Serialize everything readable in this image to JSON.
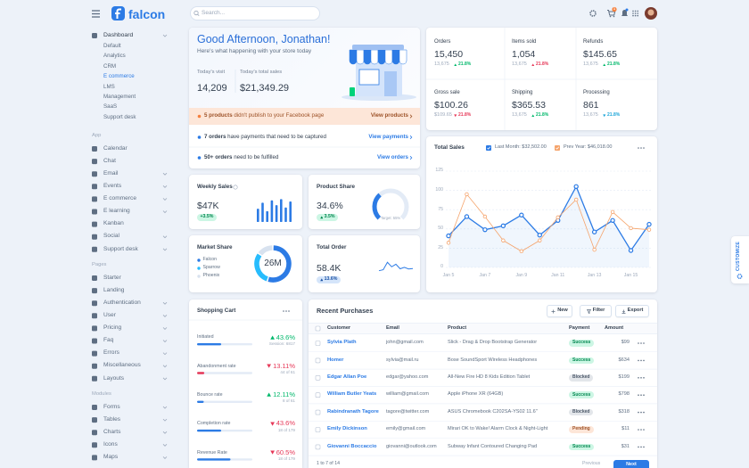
{
  "topbar": {
    "logo": "falcon",
    "search": "Search...",
    "cart_badge": "1"
  },
  "sidebar": {
    "dashboard": {
      "label": "Dashboard",
      "items": [
        "Default",
        "Analytics",
        "CRM",
        "E commerce",
        "LMS",
        "Management",
        "SaaS",
        "Support desk"
      ],
      "active_index": 3
    },
    "groups": [
      {
        "label": "App",
        "items": [
          {
            "label": "Calendar",
            "expandable": false
          },
          {
            "label": "Chat",
            "expandable": false
          },
          {
            "label": "Email",
            "expandable": true
          },
          {
            "label": "Events",
            "expandable": true
          },
          {
            "label": "E commerce",
            "expandable": true
          },
          {
            "label": "E learning",
            "expandable": true
          },
          {
            "label": "Kanban",
            "expandable": false
          },
          {
            "label": "Social",
            "expandable": true
          },
          {
            "label": "Support desk",
            "expandable": true
          }
        ]
      },
      {
        "label": "Pages",
        "items": [
          {
            "label": "Starter",
            "expandable": false
          },
          {
            "label": "Landing",
            "expandable": false
          },
          {
            "label": "Authentication",
            "expandable": true
          },
          {
            "label": "User",
            "expandable": true
          },
          {
            "label": "Pricing",
            "expandable": true
          },
          {
            "label": "Faq",
            "expandable": true
          },
          {
            "label": "Errors",
            "expandable": true
          },
          {
            "label": "Miscellaneous",
            "expandable": true
          },
          {
            "label": "Layouts",
            "expandable": true
          }
        ]
      },
      {
        "label": "Modules",
        "items": [
          {
            "label": "Forms",
            "expandable": true
          },
          {
            "label": "Tables",
            "expandable": true
          },
          {
            "label": "Charts",
            "expandable": true
          },
          {
            "label": "Icons",
            "expandable": true
          },
          {
            "label": "Maps",
            "expandable": true
          }
        ]
      }
    ]
  },
  "greeting": {
    "title": "Good Afternoon, Jonathan!",
    "subtitle": "Here's what happening with your store today",
    "stats": [
      {
        "label": "Today's visit",
        "value": "14,209"
      },
      {
        "label": "Today's total sales",
        "value": "$21,349.29"
      }
    ],
    "notices": [
      {
        "strong": "5 products",
        "text": " didn't publish to your Facebook page",
        "link": "View products",
        "highlight": true
      },
      {
        "strong": "7 orders",
        "text": " have payments that need to be captured",
        "link": "View payments",
        "highlight": false
      },
      {
        "strong": "50+ orders",
        "text": " need to be fulfilled",
        "link": "View orders",
        "highlight": false
      }
    ]
  },
  "order_stats": [
    {
      "label": "Orders",
      "value": "15,450",
      "compare": "13,675",
      "change": "21.8%",
      "trend": "up",
      "color": "#00b86b"
    },
    {
      "label": "Items sold",
      "value": "1,054",
      "compare": "13,675",
      "change": "21.8%",
      "trend": "up",
      "color": "#e63757"
    },
    {
      "label": "Refunds",
      "value": "$145.65",
      "compare": "13,675",
      "change": "21.8%",
      "trend": "up",
      "color": "#00b86b"
    },
    {
      "label": "Gross sale",
      "value": "$100.26",
      "compare": "$109.65",
      "change": "21.8%",
      "trend": "down",
      "color": "#e63757"
    },
    {
      "label": "Shipping",
      "value": "$365.53",
      "compare": "13,675",
      "change": "21.8%",
      "trend": "up",
      "color": "#00b86b"
    },
    {
      "label": "Processing",
      "value": "861",
      "compare": "13,675",
      "change": "21.8%",
      "trend": "down",
      "color": "#1ba5d8"
    }
  ],
  "total_sales": {
    "type": "line",
    "title": "Total Sales",
    "categories": [
      "Jan 5",
      null,
      "Jan 7",
      null,
      "Jan 9",
      null,
      "Jan 11",
      null,
      "Jan 13",
      null,
      "Jan 15",
      null
    ],
    "series": [
      {
        "name": "Last Month: $32,502.00",
        "color": "#2c7be5",
        "values": [
          41,
          66,
          49,
          54,
          68,
          42,
          61,
          105,
          46,
          61,
          22,
          56
        ]
      },
      {
        "name": "Prev Year: $46,018.00",
        "color": "#f5a46c",
        "values": [
          32,
          95,
          66,
          35,
          21,
          35,
          65,
          88,
          23,
          72,
          51,
          49
        ]
      }
    ],
    "ylim": [
      0,
      125
    ],
    "yticks": [
      0,
      25,
      50,
      75,
      100,
      125
    ],
    "grid": true
  },
  "weekly_sales": {
    "title": "Weekly Sales",
    "value": "$47K",
    "badge": "+3.5%",
    "bars": {
      "values": [
        55,
        80,
        45,
        90,
        70,
        95,
        60,
        85
      ],
      "ylim": [
        0,
        100
      ]
    }
  },
  "product_share": {
    "title": "Product Share",
    "value": 34.6,
    "value_label": "34.6%",
    "badge": "3.5%",
    "target": "Target: 55%",
    "lim": [
      0,
      100
    ]
  },
  "market_share": {
    "title": "Market Share",
    "center": "26M",
    "series": [
      {
        "name": "Falcon",
        "color": "#2c7be5",
        "value": 55
      },
      {
        "name": "Sparrow",
        "color": "#27bcfd",
        "value": 30
      },
      {
        "name": "Phoenix",
        "color": "#d8e2ef",
        "value": 15
      }
    ]
  },
  "total_order": {
    "title": "Total Order",
    "value": "58.4K",
    "badge": "13.6%",
    "line": {
      "values": [
        15,
        20,
        58,
        35,
        48,
        25,
        32,
        24,
        26
      ],
      "ylim": [
        0,
        100
      ]
    }
  },
  "shopping_cart": {
    "title": "Shopping Cart",
    "bar_lim": [
      0,
      100
    ],
    "rows": [
      {
        "label": "Initiated",
        "percent": 43.6,
        "percent_label": "43.6%",
        "sub": "Session: 6817",
        "trend": "up",
        "trend_color": "#00b86b",
        "bar_color": "#2c7be5"
      },
      {
        "label": "Abandonment rate",
        "percent": 13.11,
        "percent_label": "13.11%",
        "sub": "44 of 61",
        "trend": "down",
        "trend_color": "#e63757",
        "bar_color": "#e63757"
      },
      {
        "label": "Bounce rate",
        "percent": 12.11,
        "percent_label": "12.11%",
        "sub": "8 of 61",
        "trend": "up",
        "trend_color": "#00b86b",
        "bar_color": "#2c7be5"
      },
      {
        "label": "Completion rate",
        "percent": 43.6,
        "percent_label": "43.6%",
        "sub": "18 of 179",
        "trend": "down",
        "trend_color": "#e63757",
        "bar_color": "#2c7be5"
      },
      {
        "label": "Revenue Rate",
        "percent": 60.5,
        "percent_label": "60.5%",
        "sub": "18 of 179",
        "trend": "down",
        "trend_color": "#e63757",
        "bar_color": "#2c7be5"
      }
    ]
  },
  "recent_purchases": {
    "title": "Recent Purchases",
    "actions": [
      "New",
      "Filter",
      "Export"
    ],
    "columns": [
      "Customer",
      "Email",
      "Product",
      "Payment",
      "Amount"
    ],
    "rows": [
      {
        "customer": "Sylvia Plath",
        "email": "john@gmail.com",
        "product": "Slick - Drag & Drop Bootstrap Generator",
        "payment": "Success",
        "payment_style": "success",
        "amount": "$99"
      },
      {
        "customer": "Homer",
        "email": "sylvia@mail.ru",
        "product": "Bose SoundSport Wireless Headphones",
        "payment": "Success",
        "payment_style": "success",
        "amount": "$634"
      },
      {
        "customer": "Edgar Allan Poe",
        "email": "edgar@yahoo.com",
        "product": "All-New Fire HD 8 Kids Edition Tablet",
        "payment": "Blocked",
        "payment_style": "secondary",
        "amount": "$199"
      },
      {
        "customer": "William Butler Yeats",
        "email": "william@gmail.com",
        "product": "Apple iPhone XR (64GB)",
        "payment": "Success",
        "payment_style": "success",
        "amount": "$798"
      },
      {
        "customer": "Rabindranath Tagore",
        "email": "tagore@twitter.com",
        "product": "ASUS Chromebook C202SA-YS02 11.6\"",
        "payment": "Blocked",
        "payment_style": "secondary",
        "amount": "$318"
      },
      {
        "customer": "Emily Dickinson",
        "email": "emily@gmail.com",
        "product": "Mirari OK to Wake! Alarm Clock & Night-Light",
        "payment": "Pending",
        "payment_style": "warning",
        "amount": "$11"
      },
      {
        "customer": "Giovanni Boccaccio",
        "email": "giovanni@outlook.com",
        "product": "Subway Infant Contoured Changing Pad",
        "payment": "Success",
        "payment_style": "success",
        "amount": "$31"
      }
    ],
    "range": "1 to 7 of 14",
    "prev": "Previous",
    "next": "Next"
  },
  "customize": "CUSTOMIZE"
}
